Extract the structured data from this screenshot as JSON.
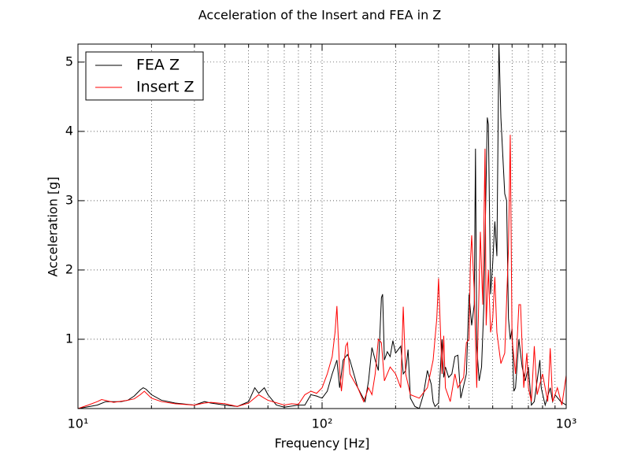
{
  "chart_data": {
    "type": "line",
    "title": "Acceleration of the Insert and FEA in Z",
    "x_label": "Frequency [Hz]",
    "y_label": "Acceleration [g]",
    "xscale": "log",
    "xlim": [
      10,
      1000
    ],
    "ylim": [
      0,
      5.26
    ],
    "xticks": [
      {
        "value": 10,
        "label": "10¹"
      },
      {
        "value": 100,
        "label": "10²"
      },
      {
        "value": 1000,
        "label": "10³"
      }
    ],
    "xminorticks": [
      20,
      30,
      40,
      50,
      60,
      70,
      80,
      90,
      200,
      300,
      400,
      500,
      600,
      700,
      800,
      900
    ],
    "yticks": [
      1,
      2,
      3,
      4,
      5
    ],
    "grid": true,
    "legend": "upper left",
    "series": [
      {
        "name": "FEA Z",
        "color": "#000000",
        "x": [
          10,
          12,
          13,
          15,
          16,
          17,
          18,
          18.5,
          19,
          20,
          22,
          25,
          30,
          33,
          35,
          40,
          45,
          50,
          53,
          55,
          58,
          60,
          65,
          70,
          80,
          85,
          90,
          95,
          100,
          105,
          110,
          115,
          118,
          122,
          127,
          130,
          140,
          150,
          155,
          160,
          165,
          170,
          175,
          177,
          180,
          185,
          190,
          195,
          200,
          210,
          215,
          220,
          225,
          230,
          240,
          250,
          260,
          270,
          280,
          285,
          290,
          300,
          310,
          315,
          320,
          330,
          340,
          350,
          360,
          370,
          390,
          400,
          410,
          420,
          425,
          430,
          440,
          450,
          460,
          475,
          480,
          490,
          500,
          510,
          520,
          530,
          540,
          560,
          570,
          580,
          590,
          600,
          610,
          620,
          640,
          660,
          680,
          700,
          720,
          740,
          760,
          780,
          790,
          820,
          860,
          880,
          900,
          950,
          1000
        ],
        "values": [
          0,
          0.05,
          0.1,
          0.1,
          0.12,
          0.18,
          0.27,
          0.3,
          0.28,
          0.2,
          0.12,
          0.08,
          0.05,
          0.1,
          0.08,
          0.05,
          0.03,
          0.1,
          0.3,
          0.22,
          0.3,
          0.2,
          0.05,
          0.02,
          0.05,
          0.05,
          0.2,
          0.18,
          0.15,
          0.25,
          0.5,
          0.7,
          0.3,
          0.7,
          0.78,
          0.7,
          0.3,
          0.1,
          0.4,
          0.88,
          0.7,
          0.55,
          1.6,
          1.65,
          0.7,
          0.82,
          0.75,
          0.98,
          0.8,
          0.9,
          0.5,
          0.55,
          0.85,
          0.15,
          0.03,
          0,
          0.2,
          0.55,
          0.35,
          0.1,
          0.03,
          0.08,
          1,
          0.45,
          0.6,
          0.45,
          0.5,
          0.75,
          0.77,
          0.15,
          0.5,
          1.65,
          1.2,
          1.5,
          3.75,
          0.9,
          0.4,
          0.6,
          1.5,
          4.2,
          4.1,
          1.65,
          2.1,
          2.7,
          2.2,
          5.3,
          4.2,
          3.1,
          3,
          1.3,
          1,
          1.15,
          0.25,
          0.3,
          1,
          0.6,
          0.4,
          0.6,
          0.05,
          0.1,
          0.4,
          0.7,
          0.3,
          0.05,
          0.3,
          0.1,
          0.2,
          0.1,
          0.05
        ]
      },
      {
        "name": "Insert Z",
        "color": "#ff0000",
        "x": [
          10,
          11,
          12,
          12.5,
          14,
          16,
          17,
          18,
          18.7,
          20,
          22,
          25,
          30,
          33,
          35,
          40,
          45,
          50,
          55,
          58,
          60,
          70,
          75,
          80,
          85,
          90,
          95,
          100,
          105,
          110,
          113,
          115,
          118,
          120,
          125,
          127,
          130,
          140,
          148,
          155,
          160,
          165,
          170,
          175,
          180,
          190,
          200,
          210,
          215,
          220,
          230,
          250,
          270,
          285,
          295,
          300,
          310,
          315,
          320,
          335,
          350,
          360,
          380,
          390,
          400,
          405,
          410,
          420,
          430,
          445,
          455,
          465,
          470,
          480,
          490,
          500,
          510,
          520,
          540,
          560,
          580,
          590,
          600,
          620,
          640,
          650,
          670,
          690,
          700,
          720,
          740,
          760,
          800,
          840,
          860,
          880,
          920,
          960,
          1000
        ],
        "values": [
          0,
          0.05,
          0.1,
          0.13,
          0.09,
          0.12,
          0.14,
          0.2,
          0.25,
          0.15,
          0.1,
          0.07,
          0.05,
          0.08,
          0.09,
          0.07,
          0.03,
          0.08,
          0.2,
          0.15,
          0.12,
          0.05,
          0.07,
          0.06,
          0.2,
          0.25,
          0.22,
          0.3,
          0.5,
          0.75,
          1.1,
          1.48,
          0.55,
          0.25,
          0.9,
          0.95,
          0.5,
          0.3,
          0.1,
          0.3,
          0.2,
          0.5,
          1,
          0.95,
          0.4,
          0.6,
          0.5,
          0.3,
          1.47,
          0.5,
          0.2,
          0.15,
          0.3,
          0.7,
          1.3,
          1.88,
          0.5,
          1.05,
          0.3,
          0.1,
          0.5,
          0.3,
          0.45,
          0.95,
          1,
          2.1,
          2.5,
          1.7,
          0.3,
          2.55,
          1.5,
          3.75,
          1.2,
          2,
          1.1,
          1.3,
          1.9,
          1.1,
          0.65,
          0.8,
          2.3,
          3.95,
          1,
          0.5,
          1.5,
          1.5,
          0.3,
          0.8,
          0.3,
          0.1,
          0.9,
          0.2,
          0.5,
          0.1,
          0.87,
          0.1,
          0.3,
          0.05,
          0.48
        ]
      }
    ]
  }
}
